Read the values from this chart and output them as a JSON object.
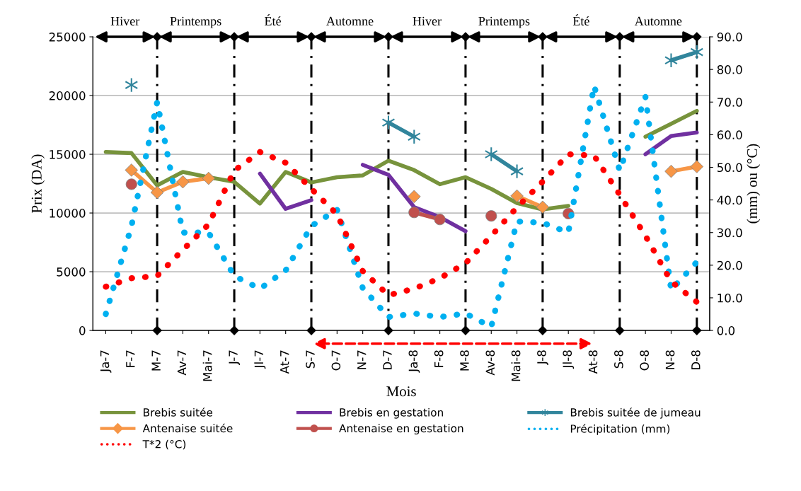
{
  "chart_data": {
    "type": "line",
    "xlabel": "Mois",
    "ylabel": "Prix (DA)",
    "y2label": "(mm) ou (°C)",
    "categories": [
      "Ja-7",
      "F-7",
      "M-7",
      "Av-7",
      "Mai-7",
      "J-7",
      "Jl-7",
      "At-7",
      "S-7",
      "O-7",
      "N-7",
      "D-7",
      "Ja-8",
      "F-8",
      "M-8",
      "Av-8",
      "Mai-8",
      "J-8",
      "Jl-8",
      "At-8",
      "S-8",
      "O-8",
      "N-8",
      "D-8"
    ],
    "ylim": [
      0,
      25000
    ],
    "yticks": [
      0,
      5000,
      10000,
      15000,
      20000,
      25000
    ],
    "y2lim": [
      0,
      90
    ],
    "y2ticks": [
      {
        "value": 0,
        "label": "0.0"
      },
      {
        "value": 10,
        "label": "10.0"
      },
      {
        "value": 20,
        "label": "20.0"
      },
      {
        "value": 30,
        "label": "30.0"
      },
      {
        "value": 40,
        "label": "40.0"
      },
      {
        "value": 50,
        "label": "50.0"
      },
      {
        "value": 60,
        "label": "60.0"
      },
      {
        "value": 70,
        "label": "70.0"
      },
      {
        "value": 80,
        "label": "80.0"
      },
      {
        "value": 90,
        "label": "90.0"
      }
    ],
    "grid": "y",
    "legend": "bottom",
    "series": [
      {
        "name": "Brebis suitée",
        "color": "#77933c",
        "marker": "none",
        "line_style": "solid",
        "values": [
          15200,
          15100,
          12350,
          13500,
          13050,
          12650,
          10800,
          13500,
          12600,
          13050,
          13200,
          14450,
          13650,
          12450,
          13050,
          12050,
          10850,
          10300,
          10600,
          null,
          null,
          16500,
          17600,
          18700
        ]
      },
      {
        "name": "Brebis en gestation",
        "color": "#7030a0",
        "marker": "none",
        "line_style": "solid",
        "values": [
          null,
          null,
          null,
          null,
          null,
          null,
          13350,
          10350,
          11100,
          null,
          14100,
          13250,
          10500,
          9650,
          8450,
          null,
          null,
          null,
          null,
          null,
          null,
          15000,
          16550,
          16850
        ]
      },
      {
        "name": "Brebis suitée de jumeau",
        "color": "#31859c",
        "marker": "cross",
        "line_style": "solid",
        "values": [
          null,
          20900,
          null,
          null,
          null,
          null,
          null,
          null,
          null,
          null,
          null,
          17700,
          16500,
          null,
          null,
          15000,
          13550,
          null,
          null,
          null,
          null,
          null,
          23000,
          23700
        ]
      },
      {
        "name": "Antenaise suitée",
        "color": "#f79646",
        "marker": "diamond",
        "line_style": "solid",
        "values": [
          null,
          13650,
          11750,
          12650,
          12950,
          null,
          null,
          null,
          null,
          null,
          null,
          null,
          11400,
          null,
          null,
          null,
          11450,
          10500,
          null,
          null,
          null,
          null,
          13550,
          13950
        ]
      },
      {
        "name": "Antenaise en gestation",
        "color": "#c0504d",
        "marker": "circle",
        "line_style": "solid",
        "values": [
          null,
          12450,
          null,
          null,
          null,
          null,
          null,
          null,
          null,
          null,
          null,
          null,
          10050,
          9450,
          null,
          9750,
          null,
          null,
          9950,
          null,
          null,
          null,
          null,
          null
        ]
      },
      {
        "name": "Précipitation (mm)",
        "color": "#00b0f0",
        "marker": "none",
        "line_style": "dotted",
        "axis": "y2",
        "values": [
          5,
          32,
          70,
          30,
          30,
          16.7,
          12.8,
          18.4,
          32,
          37,
          13,
          4.1,
          5.2,
          4.1,
          5.2,
          1.1,
          33.4,
          33,
          30,
          75,
          49,
          71.6,
          12.4,
          21
        ]
      },
      {
        "name": "T*2 (°C)",
        "color": "#ff0000",
        "marker": "none",
        "line_style": "dotted",
        "axis": "y2",
        "values": [
          13.4,
          16,
          16.7,
          24.7,
          32.5,
          49,
          54.7,
          51.4,
          43.4,
          35.6,
          18.2,
          10.8,
          12.8,
          16,
          20.6,
          29,
          37.7,
          45.6,
          54,
          53.6,
          41.6,
          29,
          15,
          8.7
        ]
      }
    ],
    "ref_lines": [
      {
        "axis": "x",
        "value": "M-7",
        "color": "#000000",
        "line_style": "dashdot"
      },
      {
        "axis": "x",
        "value": "J-7",
        "color": "#000000",
        "line_style": "dashdot"
      },
      {
        "axis": "x",
        "value": "S-7",
        "color": "#000000",
        "line_style": "dashdot"
      },
      {
        "axis": "x",
        "value": "D-7",
        "color": "#000000",
        "line_style": "dashdot"
      },
      {
        "axis": "x",
        "value": "M-8",
        "color": "#000000",
        "line_style": "dashdot"
      },
      {
        "axis": "x",
        "value": "J-8",
        "color": "#000000",
        "line_style": "dashdot"
      },
      {
        "axis": "x",
        "value": "S-8",
        "color": "#000000",
        "line_style": "dashdot"
      },
      {
        "axis": "x",
        "value": "D-8",
        "color": "#000000",
        "line_style": "dashdot"
      }
    ],
    "annotations": [
      "Hiver",
      "Printemps",
      "Été",
      "Automne",
      "Hiver",
      "Printemps",
      "Été",
      "Automne"
    ]
  }
}
